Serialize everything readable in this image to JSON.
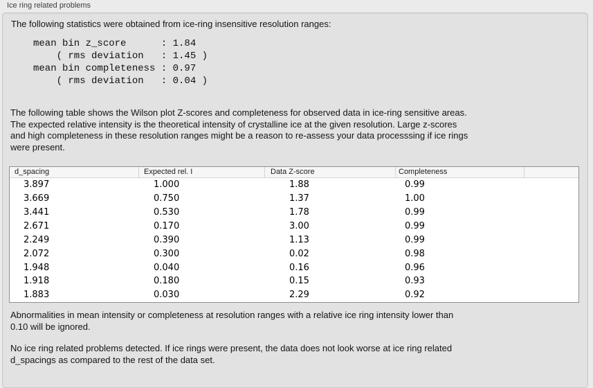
{
  "panel": {
    "title": "Ice ring related problems"
  },
  "colors": {
    "page_bg": "#ebebeb",
    "groupbox_bg": "#e2e2e2",
    "groupbox_border": "#c6c6c6",
    "table_bg": "#ffffff",
    "table_border": "#8f8f8f",
    "table_header_bg": "#f6f6f6",
    "text": "#141414"
  },
  "intro": "The following statistics were obtained from ice-ring insensitive resolution ranges:",
  "stats_block": "mean bin z_score      : 1.84\n    ( rms deviation   : 1.45 )\nmean bin completeness : 0.97\n    ( rms deviation   : 0.04 )",
  "table_intro": "The following table shows the Wilson plot Z-scores and completeness for observed data in ice-ring sensitive areas.\nThe expected relative intensity is the theoretical intensity of crystalline ice at the given resolution. Large z-scores\nand high completeness in these resolution ranges might be a reason to re-assess your data processsing if ice rings\nwere present.",
  "table": {
    "columns": [
      "d_spacing",
      "Expected rel. I",
      "Data Z-score",
      "Completeness"
    ],
    "rows": [
      [
        "3.897",
        "1.000",
        "1.88",
        "0.99"
      ],
      [
        "3.669",
        "0.750",
        "1.37",
        "1.00"
      ],
      [
        "3.441",
        "0.530",
        "1.78",
        "0.99"
      ],
      [
        "2.671",
        "0.170",
        "3.00",
        "0.99"
      ],
      [
        "2.249",
        "0.390",
        "1.13",
        "0.99"
      ],
      [
        "2.072",
        "0.300",
        "0.02",
        "0.98"
      ],
      [
        "1.948",
        "0.040",
        "0.16",
        "0.96"
      ],
      [
        "1.918",
        "0.180",
        "0.15",
        "0.93"
      ],
      [
        "1.883",
        "0.030",
        "2.29",
        "0.92"
      ]
    ]
  },
  "note_ignore": "Abnormalities in mean intensity or completeness at resolution ranges with a relative ice ring intensity lower than\n0.10 will be ignored.",
  "conclusion": "No ice ring related problems detected. If ice rings were present, the data does not look worse at ice ring related\nd_spacings as compared to the rest of the data set."
}
